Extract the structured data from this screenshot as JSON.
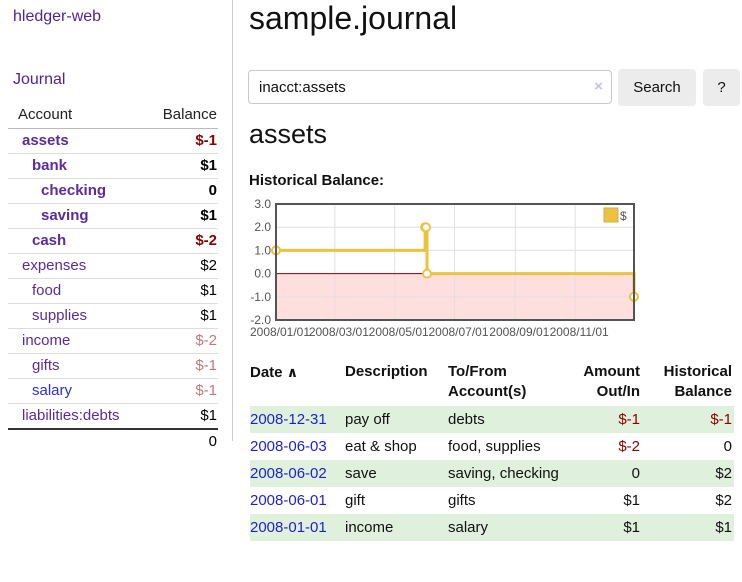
{
  "app": {
    "title": "hledger-web"
  },
  "sidebar": {
    "journal_link": "Journal",
    "table": {
      "headers": {
        "account": "Account",
        "balance": "Balance"
      },
      "rows": [
        {
          "name": "assets",
          "balance": "$-1"
        },
        {
          "name": "bank",
          "balance": "$1"
        },
        {
          "name": "checking",
          "balance": "0"
        },
        {
          "name": "saving",
          "balance": "$1"
        },
        {
          "name": "cash",
          "balance": "$-2"
        },
        {
          "name": "expenses",
          "balance": "$2"
        },
        {
          "name": "food",
          "balance": "$1"
        },
        {
          "name": "supplies",
          "balance": "$1"
        },
        {
          "name": "income",
          "balance": "$-2"
        },
        {
          "name": "gifts",
          "balance": "$-1"
        },
        {
          "name": "salary",
          "balance": "$-1"
        },
        {
          "name": "liabilities:debts",
          "balance": "$1"
        }
      ],
      "total": "0"
    }
  },
  "main": {
    "title": "sample.journal",
    "search": {
      "value": "inacct:assets",
      "clear_icon": "×",
      "button": "Search",
      "help_button": "?"
    },
    "account_heading": "assets",
    "chart_heading": "Historical Balance:"
  },
  "chart_data": {
    "type": "line",
    "step": true,
    "title": "Historical Balance:",
    "series": [
      {
        "name": "$",
        "color": "#edc240",
        "points": [
          [
            "2008-01-01",
            1
          ],
          [
            "2008-06-01",
            2
          ],
          [
            "2008-06-02",
            2
          ],
          [
            "2008-06-03",
            0
          ],
          [
            "2008-12-31",
            -1
          ]
        ]
      }
    ],
    "xlim": [
      "2008-01-01",
      "2008-12-31"
    ],
    "ylim": [
      -2,
      3
    ],
    "y_ticks": [
      3,
      2,
      1,
      0,
      -1,
      -2
    ],
    "y_tick_labels": [
      "3.0",
      "2.0",
      "1.0",
      "0.0",
      "-1.0",
      "-2.0"
    ],
    "x_ticks": [
      "2008-01-01",
      "2008-03-01",
      "2008-05-01",
      "2008-07-01",
      "2008-09-01",
      "2008-11-01"
    ],
    "x_tick_labels": [
      "2008/01/01",
      "2008/03/01",
      "2008/05/01",
      "2008/07/01",
      "2008/09/01",
      "2008/11/01"
    ],
    "grid": true,
    "legend_position": "top-right",
    "negative_fill": "#ffdede",
    "zero_line_color": "#8b0000",
    "border_color": "#545454"
  },
  "register": {
    "headers": {
      "date": "Date",
      "sort_icon": "∧",
      "description": "Description",
      "accounts": "To/From Account(s)",
      "amount": "Amount Out/In",
      "balance": "Historical Balance"
    },
    "rows": [
      {
        "date": "2008-12-31",
        "description": "pay off",
        "accounts": "debts",
        "amount": "$-1",
        "balance": "$-1"
      },
      {
        "date": "2008-06-03",
        "description": "eat & shop",
        "accounts": "food, supplies",
        "amount": "$-2",
        "balance": "0"
      },
      {
        "date": "2008-06-02",
        "description": "save",
        "accounts": "saving, checking",
        "amount": "0",
        "balance": "$2"
      },
      {
        "date": "2008-06-01",
        "description": "gift",
        "accounts": "gifts",
        "amount": "$1",
        "balance": "$2"
      },
      {
        "date": "2008-01-01",
        "description": "income",
        "accounts": "salary",
        "amount": "$1",
        "balance": "$1"
      }
    ]
  }
}
